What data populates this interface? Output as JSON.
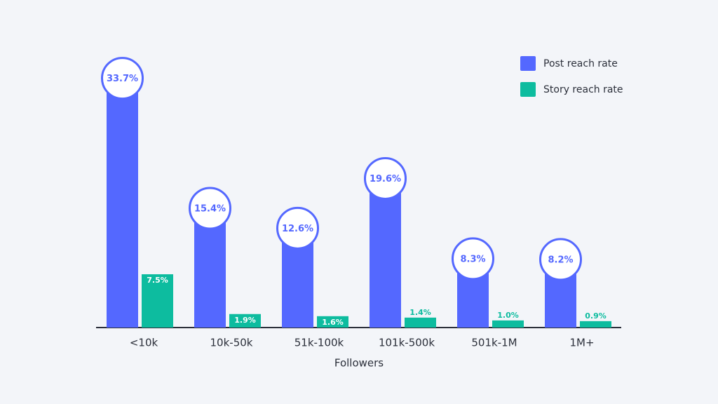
{
  "chart_data": {
    "type": "bar",
    "x_label": "Followers",
    "categories": [
      "<10k",
      "10k-50k",
      "51k-100k",
      "101k-500k",
      "501k-1M",
      "1M+"
    ],
    "series": [
      {
        "name": "Post reach rate",
        "color": "#5468ff",
        "values": [
          33.7,
          15.4,
          12.6,
          19.6,
          8.3,
          8.2
        ],
        "value_labels": [
          "33.7%",
          "15.4%",
          "12.6%",
          "19.6%",
          "8.3%",
          "8.2%"
        ]
      },
      {
        "name": "Story reach rate",
        "color": "#0dbc9f",
        "values": [
          7.5,
          1.9,
          1.6,
          1.4,
          1.0,
          0.9
        ],
        "value_labels": [
          "7.5%",
          "1.9%",
          "1.6%",
          "1.4%",
          "1.0%",
          "0.9%"
        ]
      }
    ],
    "legend": "top-right"
  }
}
